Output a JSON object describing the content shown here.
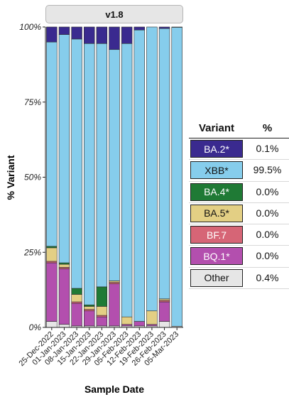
{
  "facet_label": "v1.8",
  "legend": {
    "header_variant": "Variant",
    "header_pct": "%",
    "rows": [
      {
        "name": "BA.2*",
        "pct": "0.1%",
        "color": "#3a2a8f",
        "text_color": "#ffffff"
      },
      {
        "name": "XBB*",
        "pct": "99.5%",
        "color": "#86cdec",
        "text_color": "#111111"
      },
      {
        "name": "BA.4*",
        "pct": "0.0%",
        "color": "#1f7a35",
        "text_color": "#ffffff"
      },
      {
        "name": "BA.5*",
        "pct": "0.0%",
        "color": "#e3cf84",
        "text_color": "#111111"
      },
      {
        "name": "BF.7",
        "pct": "0.0%",
        "color": "#d66576",
        "text_color": "#ffffff"
      },
      {
        "name": "BQ.1*",
        "pct": "0.0%",
        "color": "#b34fae",
        "text_color": "#ffffff"
      },
      {
        "name": "Other",
        "pct": "0.4%",
        "color": "#e6e6e6",
        "text_color": "#111111"
      }
    ]
  },
  "chart_data": {
    "type": "bar",
    "stacked": true,
    "xlabel": "Sample Date",
    "ylabel": "% Variant",
    "ylim": [
      0,
      100
    ],
    "yticks": [
      "0%",
      "25%",
      "50%",
      "75%",
      "100%"
    ],
    "categories": [
      "25-Dec-2022",
      "01-Jan-2023",
      "08-Jan-2023",
      "15-Jan-2023",
      "22-Jan-2023",
      "29-Jan-2023",
      "05-Feb-2023",
      "12-Feb-2023",
      "19-Feb-2023",
      "26-Feb-2023",
      "05-Mar-2023"
    ],
    "series": [
      {
        "name": "Other",
        "color": "#e6e6e6",
        "values": [
          2,
          1,
          0.5,
          0.5,
          0.5,
          0.5,
          0.5,
          0.5,
          0.5,
          2,
          0.4
        ]
      },
      {
        "name": "BQ.1*",
        "color": "#b34fae",
        "values": [
          19.5,
          18.5,
          7.5,
          5,
          3,
          14,
          0.5,
          1.5,
          0.5,
          6.5,
          0
        ]
      },
      {
        "name": "BF.7",
        "color": "#d66576",
        "values": [
          0.5,
          0.5,
          0.5,
          0.5,
          0.5,
          0.5,
          0,
          0,
          0,
          0.5,
          0
        ]
      },
      {
        "name": "BA.5*",
        "color": "#e3cf84",
        "values": [
          4.5,
          1,
          2.5,
          1,
          3,
          0.5,
          2.5,
          0,
          4.5,
          0.5,
          0
        ]
      },
      {
        "name": "BA.4*",
        "color": "#1f7a35",
        "values": [
          0.5,
          0.5,
          2,
          0.5,
          6.5,
          0,
          0,
          0,
          0,
          0,
          0
        ]
      },
      {
        "name": "XBB*",
        "color": "#86cdec",
        "values": [
          68,
          76,
          83,
          87,
          81,
          77,
          91,
          97,
          94.5,
          90,
          99.5
        ]
      },
      {
        "name": "BA.2*",
        "color": "#3a2a8f",
        "values": [
          5,
          2.5,
          4,
          5.5,
          5.5,
          7.5,
          5.5,
          1,
          0,
          0.5,
          0.1
        ]
      }
    ],
    "grid": false,
    "legend_position": "right"
  }
}
